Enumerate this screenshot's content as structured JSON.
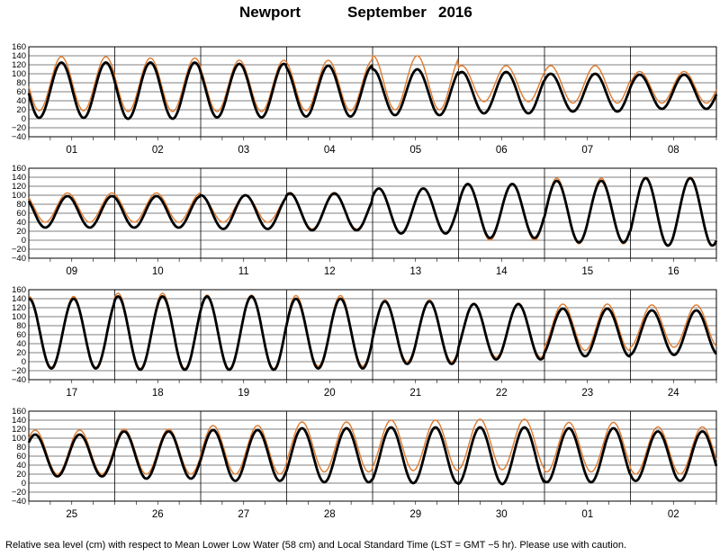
{
  "title": {
    "station": "Newport",
    "month": "September",
    "year": "2016"
  },
  "footer": "Relative sea level (cm) with respect to Mean Lower Low Water (58 cm) and Local Standard Time (LST = GMT −5 hr). Please use with caution.",
  "colors": {
    "observed": "#000000",
    "predicted": "#e07a2e",
    "grid": "#000000"
  },
  "chart_data": {
    "type": "line",
    "ylim": [
      -40,
      160
    ],
    "yticks": [
      "160",
      "140",
      "120",
      "100",
      "80",
      "60",
      "40",
      "20",
      "0",
      "−20",
      "−40"
    ],
    "series": [
      {
        "key": "observed"
      },
      {
        "key": "predicted"
      }
    ],
    "panels": [
      {
        "days": [
          "01",
          "02",
          "03",
          "04",
          "05",
          "06",
          "07",
          "08"
        ],
        "observed": [
          [
            2,
            125
          ],
          [
            0,
            125
          ],
          [
            3,
            122
          ],
          [
            5,
            118
          ],
          [
            8,
            110
          ],
          [
            12,
            104
          ],
          [
            16,
            100
          ],
          [
            22,
            98
          ]
        ],
        "predicted": [
          [
            18,
            138
          ],
          [
            16,
            135
          ],
          [
            16,
            130
          ],
          [
            18,
            130
          ],
          [
            20,
            140
          ],
          [
            38,
            118
          ],
          [
            35,
            118
          ],
          [
            35,
            105
          ]
        ]
      },
      {
        "days": [
          "09",
          "10",
          "11",
          "12",
          "13",
          "14",
          "15",
          "16"
        ],
        "observed": [
          [
            28,
            98
          ],
          [
            28,
            98
          ],
          [
            25,
            100
          ],
          [
            22,
            104
          ],
          [
            15,
            115
          ],
          [
            5,
            125
          ],
          [
            -5,
            132
          ],
          [
            -12,
            138
          ]
        ],
        "predicted": [
          [
            40,
            105
          ],
          [
            40,
            105
          ],
          [
            40,
            100
          ],
          [
            25,
            106
          ],
          [
            16,
            115
          ],
          [
            0,
            125
          ],
          [
            -8,
            138
          ],
          [
            -10,
            140
          ]
        ]
      },
      {
        "days": [
          "17",
          "18",
          "19",
          "20",
          "21",
          "22",
          "23",
          "24"
        ],
        "observed": [
          [
            -15,
            140
          ],
          [
            -18,
            145
          ],
          [
            -18,
            145
          ],
          [
            -15,
            140
          ],
          [
            -5,
            134
          ],
          [
            5,
            128
          ],
          [
            12,
            118
          ],
          [
            15,
            114
          ]
        ],
        "predicted": [
          [
            -12,
            145
          ],
          [
            -15,
            152
          ],
          [
            -15,
            148
          ],
          [
            -10,
            147
          ],
          [
            0,
            137
          ],
          [
            10,
            130
          ],
          [
            25,
            128
          ],
          [
            32,
            126
          ]
        ]
      },
      {
        "days": [
          "25",
          "26",
          "27",
          "28",
          "29",
          "30",
          "01",
          "02"
        ],
        "observed": [
          [
            15,
            108
          ],
          [
            10,
            115
          ],
          [
            5,
            118
          ],
          [
            2,
            122
          ],
          [
            0,
            124
          ],
          [
            -2,
            124
          ],
          [
            2,
            122
          ],
          [
            5,
            115
          ]
        ],
        "predicted": [
          [
            20,
            118
          ],
          [
            20,
            120
          ],
          [
            20,
            128
          ],
          [
            25,
            136
          ],
          [
            28,
            140
          ],
          [
            30,
            142
          ],
          [
            25,
            135
          ],
          [
            20,
            125
          ]
        ]
      }
    ]
  }
}
